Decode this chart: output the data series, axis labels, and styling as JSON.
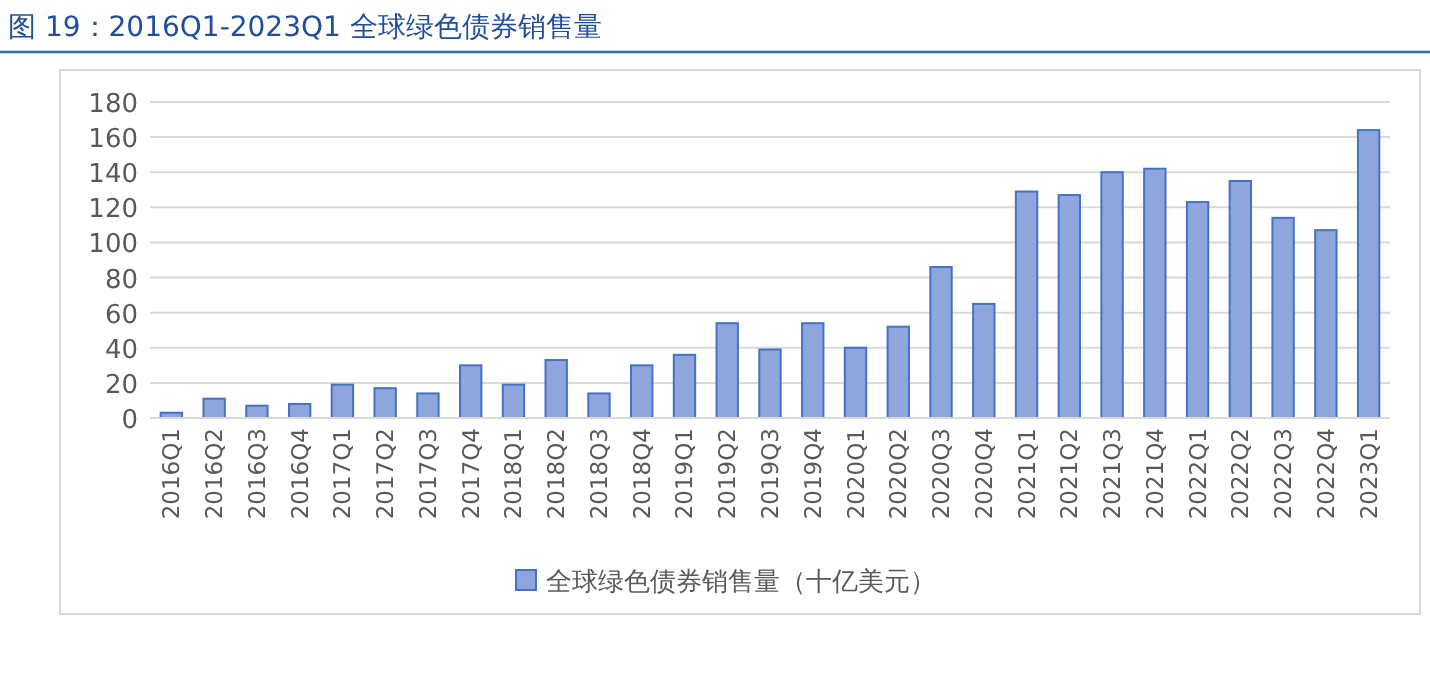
{
  "chart_data": {
    "type": "bar",
    "title": "图 19：2016Q1-2023Q1 全球绿色债券销售量",
    "categories": [
      "2016Q1",
      "2016Q2",
      "2016Q3",
      "2016Q4",
      "2017Q1",
      "2017Q2",
      "2017Q3",
      "2017Q4",
      "2018Q1",
      "2018Q2",
      "2018Q3",
      "2018Q4",
      "2019Q1",
      "2019Q2",
      "2019Q3",
      "2019Q4",
      "2020Q1",
      "2020Q2",
      "2020Q3",
      "2020Q4",
      "2021Q1",
      "2021Q2",
      "2021Q3",
      "2021Q4",
      "2022Q1",
      "2022Q2",
      "2022Q3",
      "2022Q4",
      "2023Q1"
    ],
    "series": [
      {
        "name": "全球绿色债券销售量（十亿美元）",
        "color": "#8fa6dc",
        "values": [
          3,
          11,
          7,
          8,
          19,
          17,
          14,
          30,
          19,
          33,
          14,
          30,
          36,
          54,
          39,
          54,
          40,
          52,
          86,
          65,
          129,
          127,
          140,
          142,
          123,
          135,
          114,
          107,
          164
        ]
      }
    ],
    "ylim": [
      0,
      180
    ],
    "yticks": [
      0,
      20,
      40,
      60,
      80,
      100,
      120,
      140,
      160,
      180
    ],
    "grid": "y",
    "legend": "bottom"
  }
}
